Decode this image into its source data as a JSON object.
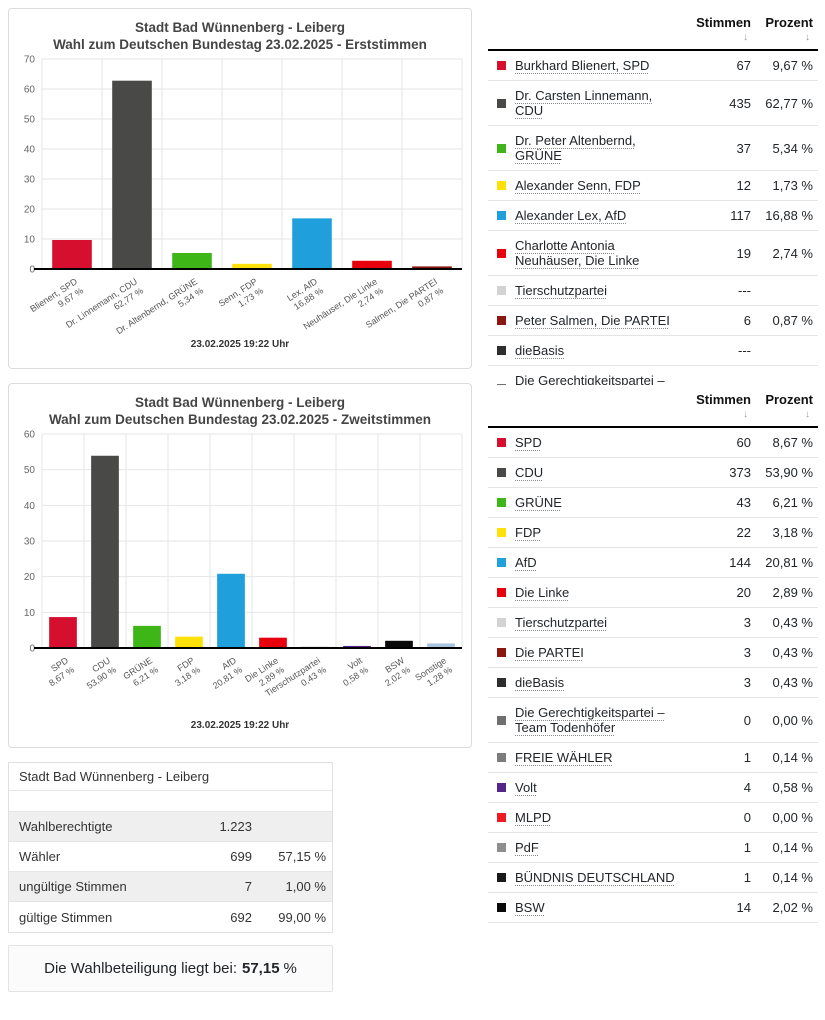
{
  "chart_data": [
    {
      "type": "bar",
      "title": "Stadt Bad Wünnenberg - Leiberg",
      "subtitle": "Wahl zum Deutschen Bundestag 23.02.2025  - Erststimmen",
      "timestamp": "23.02.2025 19:22 Uhr",
      "ylim": [
        0,
        70
      ],
      "ystep": 10,
      "grid": true,
      "categories": [
        "Blienert, SPD",
        "Dr. Linnemann, CDU",
        "Dr. Altenbernd, GRÜNE",
        "Senn, FDP",
        "Lex, AfD",
        "Neuhäuser, Die Linke",
        "Salmen, Die PARTEI"
      ],
      "pct_labels": [
        "9,67 %",
        "62,77 %",
        "5,34 %",
        "1,73 %",
        "16,88 %",
        "2,74 %",
        "0,87 %"
      ],
      "values": [
        9.67,
        62.77,
        5.34,
        1.73,
        16.88,
        2.74,
        0.87
      ],
      "colors": [
        "#D70F2F",
        "#494948",
        "#3FB618",
        "#FFE10A",
        "#1FA0DC",
        "#E8000D",
        "#8B1711"
      ]
    },
    {
      "type": "bar",
      "title": "Stadt Bad Wünnenberg - Leiberg",
      "subtitle": "Wahl zum Deutschen Bundestag 23.02.2025  - Zweitstimmen",
      "timestamp": "23.02.2025 19:22 Uhr",
      "ylim": [
        0,
        60
      ],
      "ystep": 10,
      "grid": true,
      "categories": [
        "SPD",
        "CDU",
        "GRÜNE",
        "FDP",
        "AfD",
        "Die Linke",
        "Tierschutzpartei",
        "Volt",
        "BSW",
        "Sonstige"
      ],
      "pct_labels": [
        "8,67 %",
        "53,90 %",
        "6,21 %",
        "3,18 %",
        "20,81 %",
        "2,89 %",
        "0,43 %",
        "0,58 %",
        "2,02 %",
        "1,28 %"
      ],
      "values": [
        8.67,
        53.9,
        6.21,
        3.18,
        20.81,
        2.89,
        0.43,
        0.58,
        2.02,
        1.28
      ],
      "colors": [
        "#D70F2F",
        "#494948",
        "#3FB618",
        "#FFE10A",
        "#1FA0DC",
        "#E8000D",
        "#D3D3D3",
        "#55258A",
        "#0A0A0A",
        "#A9C4DE"
      ]
    }
  ],
  "vote_tables": [
    {
      "headers": {
        "stimmen": "Stimmen",
        "prozent": "Prozent"
      },
      "sort_icon": "↓",
      "rows": [
        {
          "name": "Burkhard Blienert, SPD",
          "color": "#D70F2F",
          "stimmen": "67",
          "prozent": "9,67 %"
        },
        {
          "name": "Dr. Carsten Linnemann, CDU",
          "color": "#494948",
          "stimmen": "435",
          "prozent": "62,77 %"
        },
        {
          "name": "Dr. Peter Altenbernd, GRÜNE",
          "color": "#3FB618",
          "stimmen": "37",
          "prozent": "5,34 %"
        },
        {
          "name": "Alexander Senn, FDP",
          "color": "#FFE10A",
          "stimmen": "12",
          "prozent": "1,73 %"
        },
        {
          "name": "Alexander Lex, AfD",
          "color": "#1FA0DC",
          "stimmen": "117",
          "prozent": "16,88 %"
        },
        {
          "name": "Charlotte Antonia Neuhäuser, Die Linke",
          "color": "#E8000D",
          "stimmen": "19",
          "prozent": "2,74 %"
        },
        {
          "name": "Tierschutzpartei",
          "color": "#D3D3D3",
          "stimmen": "---",
          "prozent": ""
        },
        {
          "name": "Peter Salmen, Die PARTEI",
          "color": "#8B1711",
          "stimmen": "6",
          "prozent": "0,87 %"
        },
        {
          "name": "dieBasis",
          "color": "#2D2D2D",
          "stimmen": "---",
          "prozent": ""
        },
        {
          "name": "Die Gerechtigkeitspartei – Team Todenhöfer",
          "color": "#6F6F6F",
          "stimmen": "---",
          "prozent": ""
        }
      ]
    },
    {
      "headers": {
        "stimmen": "Stimmen",
        "prozent": "Prozent"
      },
      "sort_icon": "↓",
      "rows": [
        {
          "name": "SPD",
          "color": "#D70F2F",
          "stimmen": "60",
          "prozent": "8,67 %"
        },
        {
          "name": "CDU",
          "color": "#494948",
          "stimmen": "373",
          "prozent": "53,90 %"
        },
        {
          "name": "GRÜNE",
          "color": "#3FB618",
          "stimmen": "43",
          "prozent": "6,21 %"
        },
        {
          "name": "FDP",
          "color": "#FFE10A",
          "stimmen": "22",
          "prozent": "3,18 %"
        },
        {
          "name": "AfD",
          "color": "#1FA0DC",
          "stimmen": "144",
          "prozent": "20,81 %"
        },
        {
          "name": "Die Linke",
          "color": "#E8000D",
          "stimmen": "20",
          "prozent": "2,89 %"
        },
        {
          "name": "Tierschutzpartei",
          "color": "#D3D3D3",
          "stimmen": "3",
          "prozent": "0,43 %"
        },
        {
          "name": "Die PARTEI",
          "color": "#8B1711",
          "stimmen": "3",
          "prozent": "0,43 %"
        },
        {
          "name": "dieBasis",
          "color": "#2D2D2D",
          "stimmen": "3",
          "prozent": "0,43 %"
        },
        {
          "name": "Die Gerechtigkeitspartei – Team Todenhöfer",
          "color": "#6F6F6F",
          "stimmen": "0",
          "prozent": "0,00 %"
        },
        {
          "name": "FREIE WÄHLER",
          "color": "#7C7C7C",
          "stimmen": "1",
          "prozent": "0,14 %"
        },
        {
          "name": "Volt",
          "color": "#55258A",
          "stimmen": "4",
          "prozent": "0,58 %"
        },
        {
          "name": "MLPD",
          "color": "#ED1C24",
          "stimmen": "0",
          "prozent": "0,00 %"
        },
        {
          "name": "PdF",
          "color": "#8E8E8E",
          "stimmen": "1",
          "prozent": "0,14 %"
        },
        {
          "name": "BÜNDNIS DEUTSCHLAND",
          "color": "#191919",
          "stimmen": "1",
          "prozent": "0,14 %"
        },
        {
          "name": "BSW",
          "color": "#0A0A0A",
          "stimmen": "14",
          "prozent": "2,02 %"
        }
      ]
    }
  ],
  "summary": {
    "title": "Stadt Bad Wünnenberg - Leiberg",
    "rows": [
      {
        "label": "Wahlberechtigte",
        "value": "1.223",
        "pct": ""
      },
      {
        "label": "Wähler",
        "value": "699",
        "pct": "57,15 %"
      },
      {
        "label": "ungültige Stimmen",
        "value": "7",
        "pct": "1,00 %"
      },
      {
        "label": "gültige Stimmen",
        "value": "692",
        "pct": "99,00 %"
      }
    ]
  },
  "turnout": {
    "prefix": "Die Wahlbeteiligung liegt bei:",
    "value": "57,15",
    "suffix": "%"
  }
}
